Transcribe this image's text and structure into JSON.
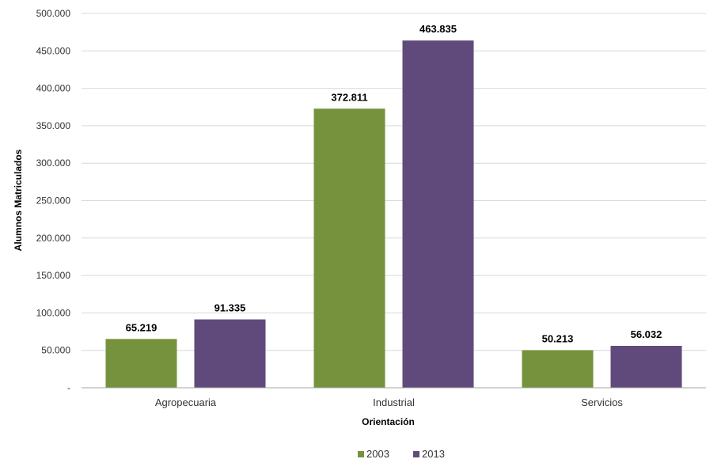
{
  "chart_data": {
    "type": "bar",
    "title": "",
    "xlabel": "Orientación",
    "ylabel": "Alumnos Matriculados",
    "categories": [
      "Agropecuaria",
      "Industrial",
      "Servicios"
    ],
    "series": [
      {
        "name": "2003",
        "color": "#76923c",
        "values": [
          65219,
          372811,
          50213
        ],
        "labels": [
          "65.219",
          "372.811",
          "50.213"
        ]
      },
      {
        "name": "2013",
        "color": "#604a7b",
        "values": [
          91335,
          463835,
          56032
        ],
        "labels": [
          "91.335",
          "463.835",
          "56.032"
        ]
      }
    ],
    "ylim": [
      0,
      500000
    ],
    "yticks": [
      0,
      50000,
      100000,
      150000,
      200000,
      250000,
      300000,
      350000,
      400000,
      450000,
      500000
    ],
    "ytick_labels": [
      "-",
      "50.000",
      "100.000",
      "150.000",
      "200.000",
      "250.000",
      "300.000",
      "350.000",
      "400.000",
      "450.000",
      "500.000"
    ],
    "grid": true,
    "legend_position": "bottom"
  }
}
